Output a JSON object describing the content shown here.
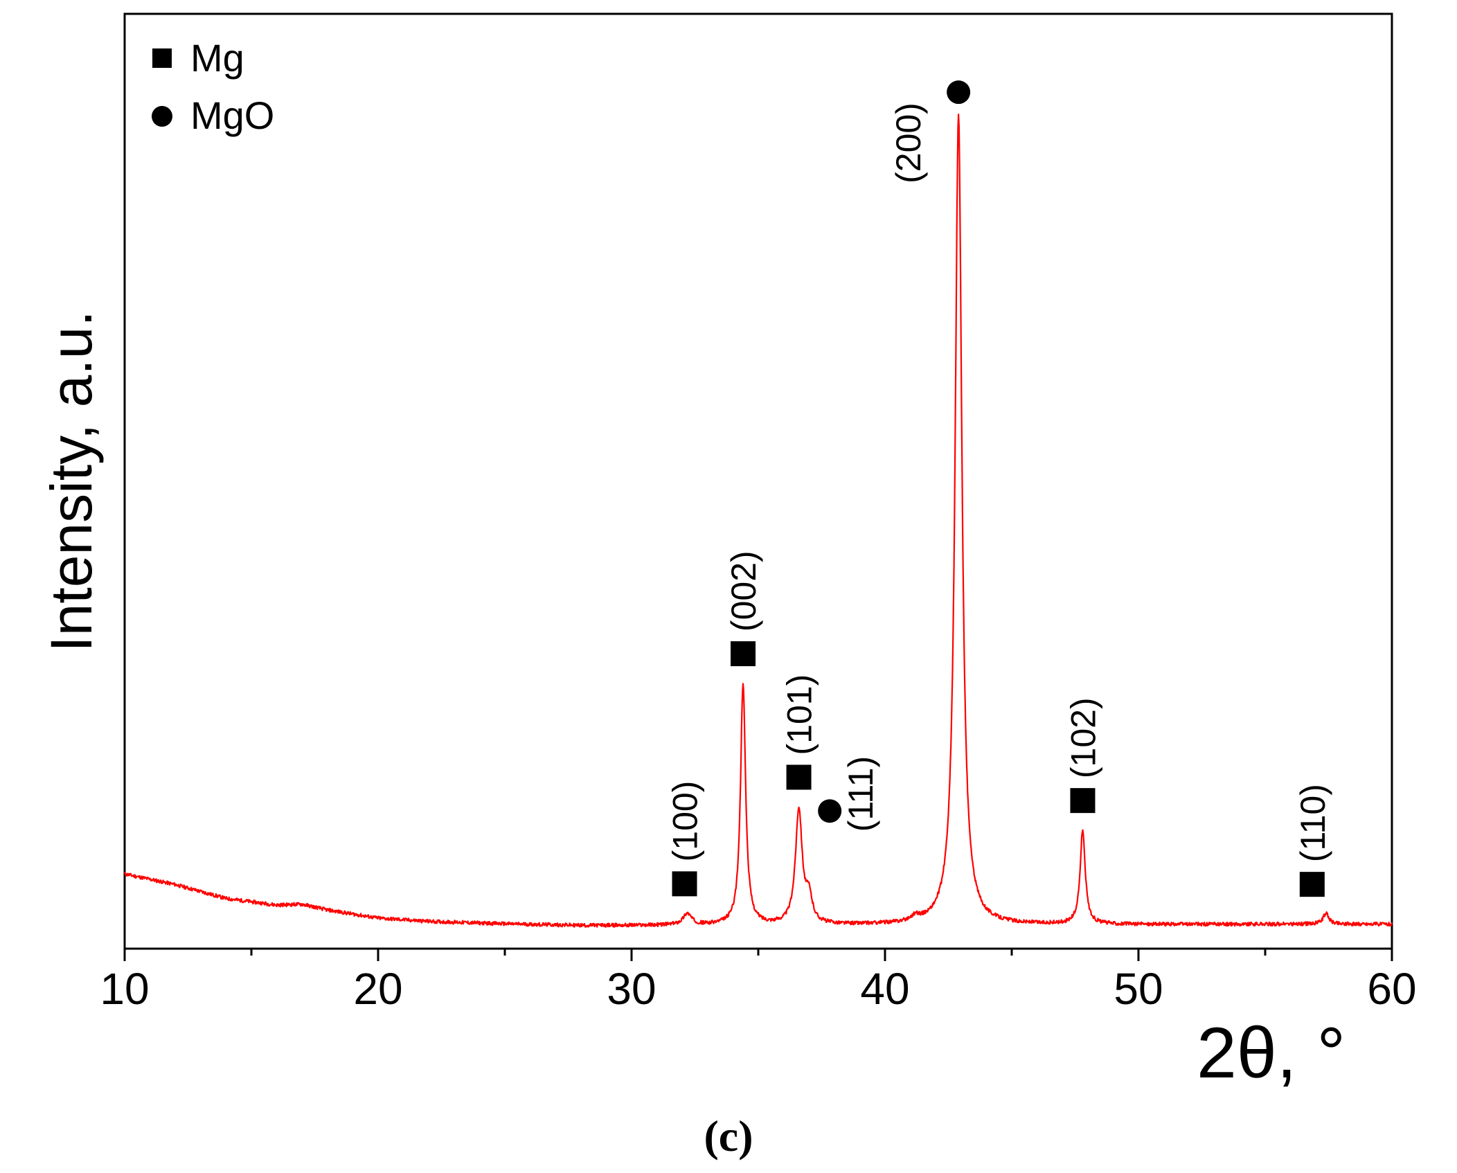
{
  "chart_data": {
    "type": "line",
    "title": "",
    "xlabel": "2θ, °",
    "ylabel": "Intensity, a.u.",
    "panel_label": "(c)",
    "xlim": [
      10,
      60
    ],
    "ylim": [
      0,
      100
    ],
    "x_ticks": [
      10,
      20,
      30,
      40,
      50,
      60
    ],
    "x_tick_labels": [
      "10",
      "20",
      "30",
      "40",
      "50",
      "60"
    ],
    "y_ticks_shown": false,
    "grid": false,
    "series_color": "#ff0000",
    "legend": {
      "placement": "top-left",
      "entries": [
        {
          "marker": "square",
          "label": "Mg"
        },
        {
          "marker": "circle",
          "label": "MgO"
        }
      ]
    },
    "baseline": [
      [
        10,
        7.6
      ],
      [
        12,
        6.3
      ],
      [
        14,
        4.6
      ],
      [
        16,
        3.8
      ],
      [
        17,
        3.9
      ],
      [
        18,
        3.2
      ],
      [
        20,
        2.2
      ],
      [
        22,
        1.8
      ],
      [
        25,
        1.5
      ],
      [
        28,
        1.3
      ],
      [
        30,
        1.3
      ]
    ],
    "peaks": [
      {
        "x": 32.2,
        "height": 1.4,
        "width": 0.2
      },
      {
        "x": 34.4,
        "height": 29.5,
        "width": 0.12
      },
      {
        "x": 36.6,
        "height": 14.0,
        "width": 0.16
      },
      {
        "x": 37.0,
        "height": 3.0,
        "width": 0.15
      },
      {
        "x": 41.2,
        "height": 0.6,
        "width": 0.2
      },
      {
        "x": 42.9,
        "height": 99.0,
        "width": 0.16
      },
      {
        "x": 47.8,
        "height": 11.5,
        "width": 0.12
      },
      {
        "x": 57.4,
        "height": 1.3,
        "width": 0.14
      }
    ],
    "annotations": [
      {
        "phase": "Mg",
        "marker": "square",
        "x": 32.2,
        "label": "(100)"
      },
      {
        "phase": "Mg",
        "marker": "square",
        "x": 34.4,
        "label": "(002)"
      },
      {
        "phase": "Mg",
        "marker": "square",
        "x": 36.6,
        "label": "(101)"
      },
      {
        "phase": "MgO",
        "marker": "circle",
        "x": 37.0,
        "label": "(111)"
      },
      {
        "phase": "MgO",
        "marker": "circle",
        "x": 42.9,
        "label": "(200)"
      },
      {
        "phase": "Mg",
        "marker": "square",
        "x": 47.8,
        "label": "(102)"
      },
      {
        "phase": "Mg",
        "marker": "square",
        "x": 57.4,
        "label": "(110)"
      }
    ]
  }
}
